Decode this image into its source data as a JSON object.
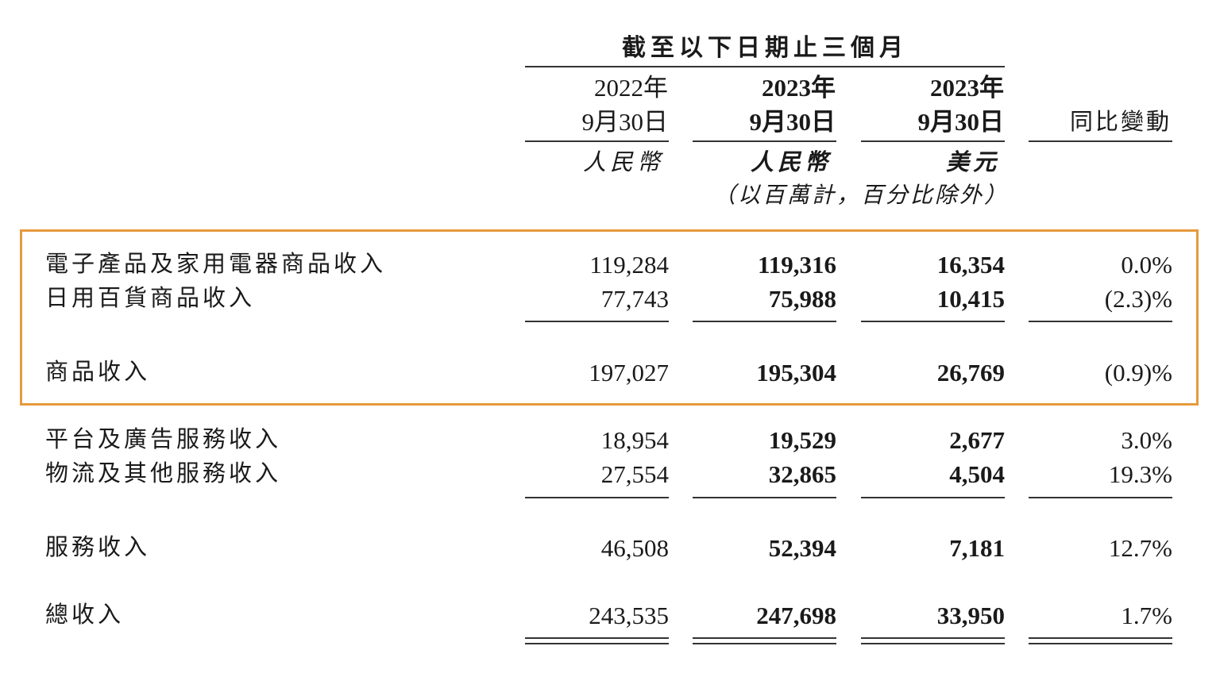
{
  "header": {
    "period": "截至以下日期止三個月",
    "columns": [
      {
        "year": "2022年",
        "date": "9月30日",
        "currency": "人民幣"
      },
      {
        "year": "2023年",
        "date": "9月30日",
        "currency": "人民幣"
      },
      {
        "year": "2023年",
        "date": "9月30日",
        "currency": "美元"
      }
    ],
    "change": "同比變動",
    "unit_note": "（以百萬計，百分比除外）"
  },
  "rows": [
    {
      "label": "電子產品及家用電器商品收入",
      "values": [
        "119,284",
        "119,316",
        "16,354",
        "0.0%"
      ]
    },
    {
      "label": "日用百貨商品收入",
      "values": [
        "77,743",
        "75,988",
        "10,415",
        "(2.3)%"
      ]
    },
    {
      "label": "商品收入",
      "values": [
        "197,027",
        "195,304",
        "26,769",
        "(0.9)%"
      ]
    },
    {
      "label": "平台及廣告服務收入",
      "values": [
        "18,954",
        "19,529",
        "2,677",
        "3.0%"
      ]
    },
    {
      "label": "物流及其他服務收入",
      "values": [
        "27,554",
        "32,865",
        "4,504",
        "19.3%"
      ]
    },
    {
      "label": "服務收入",
      "values": [
        "46,508",
        "52,394",
        "7,181",
        "12.7%"
      ]
    },
    {
      "label": "總收入",
      "values": [
        "243,535",
        "247,698",
        "33,950",
        "1.7%"
      ]
    }
  ],
  "colors": {
    "highlight_box": "#E69A3C",
    "text": "#1a1a1a"
  }
}
